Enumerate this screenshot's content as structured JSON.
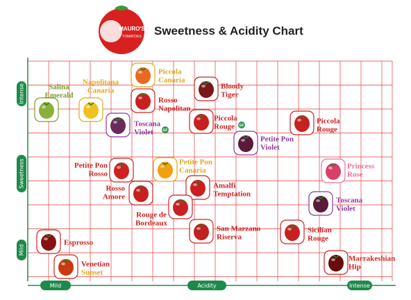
{
  "logo": {
    "line1": "MAURO'S",
    "line2": "TOMATOES"
  },
  "title": "Sweetness & Acidity Chart",
  "axes": {
    "y_label": "Sweetness",
    "y_low": "Mild",
    "y_high": "Intense",
    "x_label": "Acidity",
    "x_low": "Mild",
    "x_high": "Intense"
  },
  "badge": "GF",
  "tomatoes": [
    {
      "lines": [
        "Salina",
        "Emerald"
      ]
    },
    {
      "lines": [
        "Napolitana",
        "Canaria"
      ]
    },
    {
      "lines": [
        "Piccola",
        "Canaria"
      ]
    },
    {
      "lines": [
        "Rosso",
        "Napolitan"
      ]
    },
    {
      "lines": [
        "Toscana",
        "Violet"
      ]
    },
    {
      "lines": [
        "Bloody",
        "Tiger"
      ]
    },
    {
      "lines": [
        "Piccola",
        "Rouge"
      ]
    },
    {
      "lines": [
        "Piccola",
        "Rouge"
      ]
    },
    {
      "lines": [
        "Petite Pon",
        "Violet"
      ]
    },
    {
      "lines": [
        "Princess",
        "Rose"
      ]
    },
    {
      "lines": [
        "Toscana",
        "Violet"
      ]
    },
    {
      "lines": [
        "Petite Pon",
        "Rosso"
      ]
    },
    {
      "lines": [
        "Petite Pon",
        "Canaria"
      ]
    },
    {
      "lines": [
        "Rosso",
        "Amore"
      ]
    },
    {
      "lines": [
        "Amalfi",
        "Temptation"
      ]
    },
    {
      "lines": [
        "Rouge de",
        "Bordeaux"
      ]
    },
    {
      "lines": [
        "San Marzano",
        "Riserva"
      ]
    },
    {
      "lines": [
        "Sicilian",
        "Rouge"
      ]
    },
    {
      "lines": [
        "Esprosso"
      ]
    },
    {
      "lines": [
        "Venetian",
        "Sunset"
      ]
    },
    {
      "lines": [
        "Marrakeshian",
        "Hip"
      ]
    }
  ]
}
